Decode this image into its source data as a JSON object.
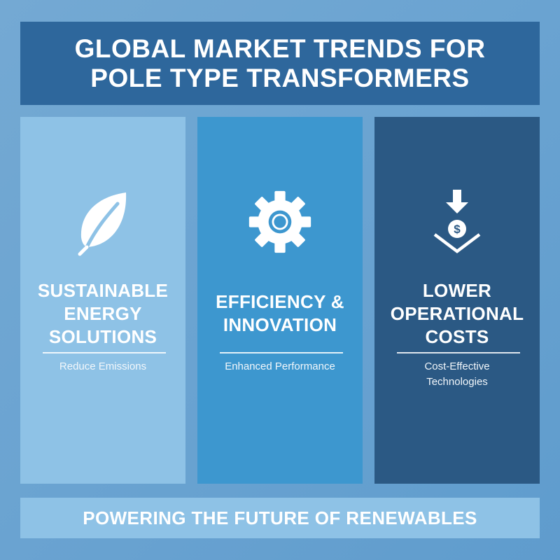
{
  "title": {
    "line1": "GLOBAL MARKET TRENDS FOR",
    "line2": "POLE TYPE TRANSFORMERS"
  },
  "cards": [
    {
      "icon": "leaf-icon",
      "title_lines": [
        "SUSTAINABLE",
        "ENERGY",
        "SOLUTIONS"
      ],
      "subtitle_lines": [
        "Reduce Emissions"
      ],
      "color": "#8ec2e6"
    },
    {
      "icon": "gear-icon",
      "title_lines": [
        "EFFICIENCY &",
        "INNOVATION"
      ],
      "subtitle_lines": [
        "Enhanced Performance"
      ],
      "color": "#3d97cf"
    },
    {
      "icon": "cost-down-dollar-icon",
      "title_lines": [
        "LOWER",
        "OPERATIONAL",
        "COSTS"
      ],
      "subtitle_lines": [
        "Cost-Effective",
        "Technologies"
      ],
      "color": "#2b5984"
    }
  ],
  "footer": {
    "text": "POWERING THE FUTURE OF RENEWABLES"
  },
  "colors": {
    "background": "#6aa3d1",
    "title_bar": "#2e679c",
    "footer_bar": "#8ec2e6",
    "text": "#ffffff"
  }
}
